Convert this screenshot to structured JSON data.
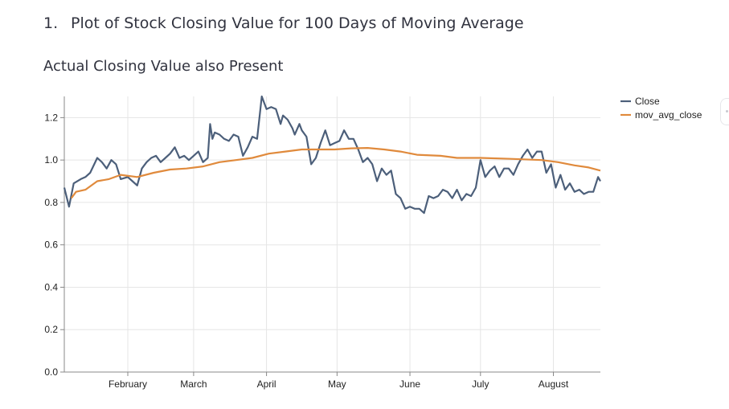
{
  "heading": {
    "number": "1.",
    "text": "Plot of Stock Closing Value for 100 Days of Moving Average"
  },
  "subheading": "Actual Closing Value also Present",
  "chart_data": {
    "type": "line",
    "title": "",
    "xlabel": "",
    "ylabel": "",
    "x_start": "2015-01-05",
    "x_end": "2015-08-21",
    "xlim": [
      "2015-01-05",
      "2015-08-21"
    ],
    "ylim": [
      0,
      1.3
    ],
    "yticks": [
      0,
      0.2,
      0.4,
      0.6,
      0.8,
      1.0,
      1.2
    ],
    "ytick_labels": [
      "0.0",
      "0.2",
      "0.4",
      "0.6",
      "0.8",
      "1.0",
      "1.2"
    ],
    "xticks": [
      "2015-02-01",
      "2015-03-01",
      "2015-04-01",
      "2015-05-01",
      "2015-06-01",
      "2015-07-01",
      "2015-08-01"
    ],
    "xtick_labels": [
      "February",
      "March",
      "April",
      "May",
      "June",
      "July",
      "August"
    ],
    "grid": true,
    "legend": "right",
    "series": [
      {
        "name": "Close",
        "color": "#4c5f7a",
        "points": [
          [
            "2015-01-05",
            0.87
          ],
          [
            "2015-01-07",
            0.78
          ],
          [
            "2015-01-09",
            0.89
          ],
          [
            "2015-01-12",
            0.91
          ],
          [
            "2015-01-14",
            0.92
          ],
          [
            "2015-01-16",
            0.94
          ],
          [
            "2015-01-19",
            1.01
          ],
          [
            "2015-01-21",
            0.99
          ],
          [
            "2015-01-23",
            0.96
          ],
          [
            "2015-01-25",
            1.0
          ],
          [
            "2015-01-27",
            0.98
          ],
          [
            "2015-01-29",
            0.91
          ],
          [
            "2015-02-01",
            0.92
          ],
          [
            "2015-02-03",
            0.9
          ],
          [
            "2015-02-05",
            0.88
          ],
          [
            "2015-02-07",
            0.96
          ],
          [
            "2015-02-09",
            0.99
          ],
          [
            "2015-02-11",
            1.01
          ],
          [
            "2015-02-13",
            1.02
          ],
          [
            "2015-02-15",
            0.99
          ],
          [
            "2015-02-17",
            1.01
          ],
          [
            "2015-02-19",
            1.03
          ],
          [
            "2015-02-21",
            1.06
          ],
          [
            "2015-02-23",
            1.01
          ],
          [
            "2015-02-25",
            1.02
          ],
          [
            "2015-02-27",
            1.0
          ],
          [
            "2015-03-01",
            1.02
          ],
          [
            "2015-03-03",
            1.04
          ],
          [
            "2015-03-05",
            0.99
          ],
          [
            "2015-03-07",
            1.01
          ],
          [
            "2015-03-08",
            1.17
          ],
          [
            "2015-03-09",
            1.1
          ],
          [
            "2015-03-10",
            1.13
          ],
          [
            "2015-03-12",
            1.12
          ],
          [
            "2015-03-14",
            1.1
          ],
          [
            "2015-03-16",
            1.09
          ],
          [
            "2015-03-18",
            1.12
          ],
          [
            "2015-03-20",
            1.11
          ],
          [
            "2015-03-22",
            1.02
          ],
          [
            "2015-03-24",
            1.06
          ],
          [
            "2015-03-26",
            1.11
          ],
          [
            "2015-03-28",
            1.1
          ],
          [
            "2015-03-30",
            1.3
          ],
          [
            "2015-04-01",
            1.24
          ],
          [
            "2015-04-03",
            1.25
          ],
          [
            "2015-04-05",
            1.24
          ],
          [
            "2015-04-07",
            1.17
          ],
          [
            "2015-04-08",
            1.21
          ],
          [
            "2015-04-10",
            1.19
          ],
          [
            "2015-04-12",
            1.15
          ],
          [
            "2015-04-13",
            1.12
          ],
          [
            "2015-04-15",
            1.17
          ],
          [
            "2015-04-16",
            1.14
          ],
          [
            "2015-04-18",
            1.11
          ],
          [
            "2015-04-20",
            0.98
          ],
          [
            "2015-04-22",
            1.01
          ],
          [
            "2015-04-24",
            1.08
          ],
          [
            "2015-04-26",
            1.14
          ],
          [
            "2015-04-28",
            1.07
          ],
          [
            "2015-04-30",
            1.08
          ],
          [
            "2015-05-02",
            1.09
          ],
          [
            "2015-05-04",
            1.14
          ],
          [
            "2015-05-06",
            1.1
          ],
          [
            "2015-05-08",
            1.1
          ],
          [
            "2015-05-10",
            1.05
          ],
          [
            "2015-05-12",
            0.99
          ],
          [
            "2015-05-14",
            1.01
          ],
          [
            "2015-05-16",
            0.98
          ],
          [
            "2015-05-18",
            0.9
          ],
          [
            "2015-05-20",
            0.96
          ],
          [
            "2015-05-22",
            0.93
          ],
          [
            "2015-05-24",
            0.95
          ],
          [
            "2015-05-26",
            0.84
          ],
          [
            "2015-05-28",
            0.82
          ],
          [
            "2015-05-30",
            0.77
          ],
          [
            "2015-06-01",
            0.78
          ],
          [
            "2015-06-03",
            0.77
          ],
          [
            "2015-06-05",
            0.77
          ],
          [
            "2015-06-07",
            0.75
          ],
          [
            "2015-06-09",
            0.83
          ],
          [
            "2015-06-11",
            0.82
          ],
          [
            "2015-06-13",
            0.83
          ],
          [
            "2015-06-15",
            0.86
          ],
          [
            "2015-06-17",
            0.85
          ],
          [
            "2015-06-19",
            0.82
          ],
          [
            "2015-06-21",
            0.86
          ],
          [
            "2015-06-23",
            0.81
          ],
          [
            "2015-06-25",
            0.84
          ],
          [
            "2015-06-27",
            0.83
          ],
          [
            "2015-06-29",
            0.87
          ],
          [
            "2015-07-01",
            1.0
          ],
          [
            "2015-07-03",
            0.92
          ],
          [
            "2015-07-05",
            0.95
          ],
          [
            "2015-07-07",
            0.97
          ],
          [
            "2015-07-09",
            0.92
          ],
          [
            "2015-07-11",
            0.96
          ],
          [
            "2015-07-13",
            0.96
          ],
          [
            "2015-07-15",
            0.93
          ],
          [
            "2015-07-17",
            0.98
          ],
          [
            "2015-07-19",
            1.02
          ],
          [
            "2015-07-21",
            1.05
          ],
          [
            "2015-07-23",
            1.01
          ],
          [
            "2015-07-25",
            1.04
          ],
          [
            "2015-07-27",
            1.04
          ],
          [
            "2015-07-29",
            0.94
          ],
          [
            "2015-07-31",
            0.98
          ],
          [
            "2015-08-02",
            0.87
          ],
          [
            "2015-08-04",
            0.93
          ],
          [
            "2015-08-06",
            0.86
          ],
          [
            "2015-08-08",
            0.89
          ],
          [
            "2015-08-10",
            0.85
          ],
          [
            "2015-08-12",
            0.86
          ],
          [
            "2015-08-14",
            0.84
          ],
          [
            "2015-08-16",
            0.85
          ],
          [
            "2015-08-18",
            0.85
          ],
          [
            "2015-08-20",
            0.92
          ],
          [
            "2015-08-21",
            0.9
          ]
        ]
      },
      {
        "name": "mov_avg_close",
        "color": "#e08a3c",
        "points": [
          [
            "2015-01-08",
            0.82
          ],
          [
            "2015-01-10",
            0.85
          ],
          [
            "2015-01-14",
            0.86
          ],
          [
            "2015-01-19",
            0.9
          ],
          [
            "2015-01-24",
            0.91
          ],
          [
            "2015-01-29",
            0.93
          ],
          [
            "2015-02-05",
            0.92
          ],
          [
            "2015-02-12",
            0.94
          ],
          [
            "2015-02-19",
            0.955
          ],
          [
            "2015-02-26",
            0.96
          ],
          [
            "2015-03-05",
            0.97
          ],
          [
            "2015-03-12",
            0.99
          ],
          [
            "2015-03-19",
            1.0
          ],
          [
            "2015-03-26",
            1.01
          ],
          [
            "2015-04-02",
            1.03
          ],
          [
            "2015-04-09",
            1.04
          ],
          [
            "2015-04-16",
            1.05
          ],
          [
            "2015-04-30",
            1.05
          ],
          [
            "2015-05-07",
            1.055
          ],
          [
            "2015-05-14",
            1.057
          ],
          [
            "2015-05-21",
            1.05
          ],
          [
            "2015-05-28",
            1.04
          ],
          [
            "2015-06-04",
            1.025
          ],
          [
            "2015-06-14",
            1.02
          ],
          [
            "2015-06-21",
            1.01
          ],
          [
            "2015-07-01",
            1.01
          ],
          [
            "2015-07-15",
            1.005
          ],
          [
            "2015-07-27",
            1.0
          ],
          [
            "2015-08-03",
            0.99
          ],
          [
            "2015-08-10",
            0.975
          ],
          [
            "2015-08-16",
            0.965
          ],
          [
            "2015-08-21",
            0.95
          ]
        ]
      }
    ]
  }
}
